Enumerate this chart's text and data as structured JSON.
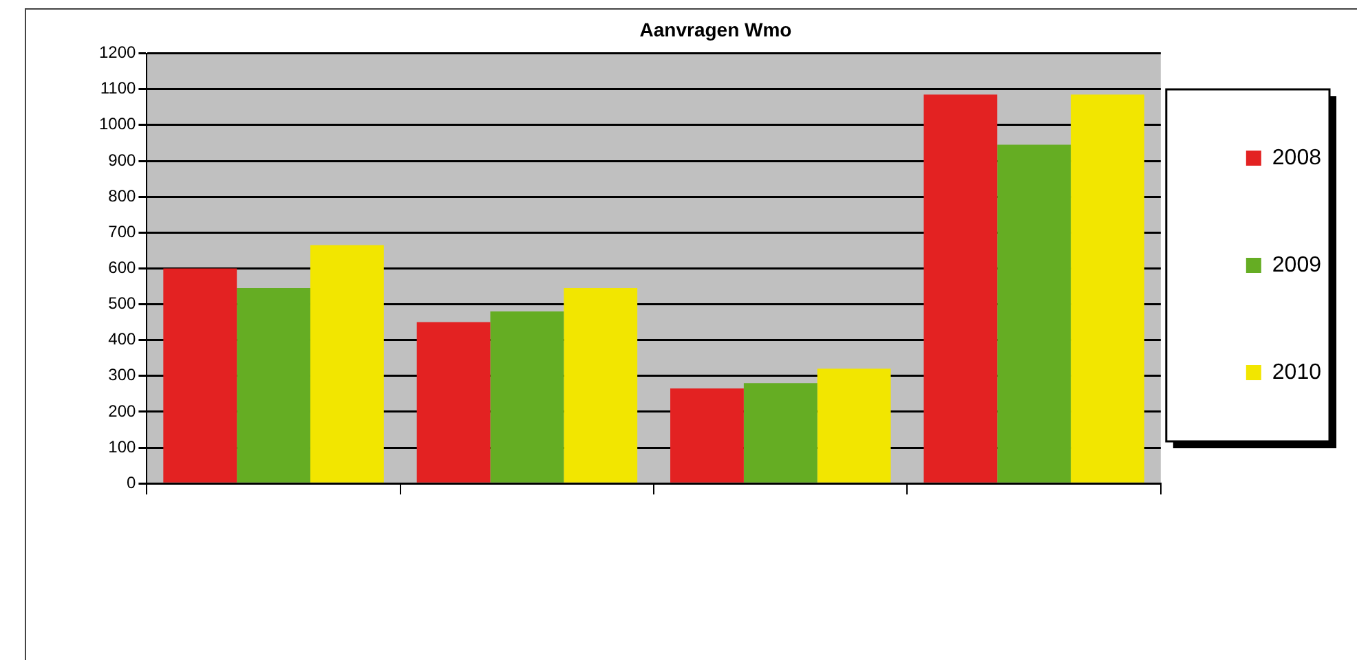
{
  "chart_data": {
    "type": "bar",
    "title": "Aanvragen Wmo",
    "categories": [
      null,
      null,
      null,
      null
    ],
    "series": [
      {
        "name": "2008",
        "color": "#e32222",
        "values": [
          600,
          450,
          265,
          1085
        ]
      },
      {
        "name": "2009",
        "color": "#65ad23",
        "values": [
          545,
          480,
          280,
          945
        ]
      },
      {
        "name": "2010",
        "color": "#f2e600",
        "values": [
          665,
          545,
          320,
          1085
        ]
      }
    ],
    "ylim": [
      0,
      1200
    ],
    "yticks": [
      0,
      100,
      200,
      300,
      400,
      500,
      600,
      700,
      800,
      900,
      1000,
      1100,
      1200
    ],
    "grid": "y",
    "legend": "right"
  }
}
